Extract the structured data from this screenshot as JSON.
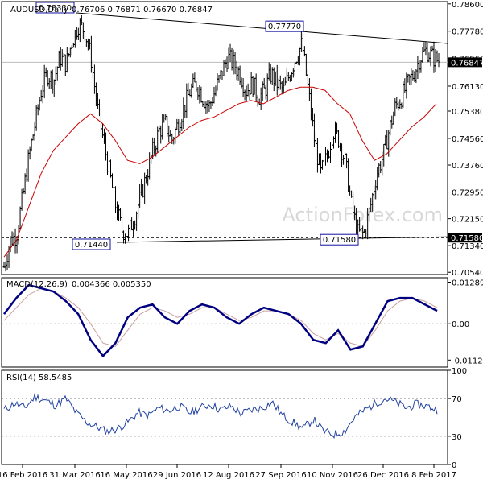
{
  "header": {
    "symbol": "AUDUSD,Daily",
    "ohlc": "0.76706 0.76871 0.76670 0.76847"
  },
  "watermark": "ActionForex.com",
  "colors": {
    "ohlc": "#000000",
    "ema": "#cc0000",
    "macd": "#000080",
    "signal": "#c8a0a0",
    "rsi": "#2040a0",
    "trendline": "#000000",
    "current_price_tag": "#000000"
  },
  "chart_data": [
    {
      "type": "ohlc",
      "title": "AUDUSD,Daily",
      "y_ticks": [
        "0.78600",
        "0.77780",
        "0.76960",
        "0.76130",
        "0.75380",
        "0.74560",
        "0.73760",
        "0.72950",
        "0.72150",
        "0.71340",
        "0.70540"
      ],
      "ylim": [
        0.70473,
        0.78668
      ],
      "x_ticks": [
        "16 Feb 2016",
        "31 Mar 2016",
        "16 May 2016",
        "29 Jun 2016",
        "12 Aug 2016",
        "27 Sep 2016",
        "10 Nov 2016",
        "26 Dec 2016",
        "8 Feb 2017"
      ],
      "annotations": [
        {
          "label": "0.78330",
          "x": "31 Mar 2016",
          "y": 0.7833
        },
        {
          "label": "0.71440",
          "x": "16 May 2016",
          "y": 0.7144
        },
        {
          "label": "0.77770",
          "x": "27 Sep 2016",
          "y": 0.7777
        },
        {
          "label": "0.71580",
          "x": "26 Dec 2016",
          "y": 0.7158
        }
      ],
      "price_tags": [
        {
          "label": "0.76847",
          "y": 0.76847
        },
        {
          "label": "0.71580",
          "y": 0.7158
        }
      ],
      "close_path": [
        0.707,
        0.715,
        0.7165,
        0.728,
        0.74,
        0.75,
        0.76,
        0.765,
        0.763,
        0.77,
        0.768,
        0.775,
        0.78,
        0.778,
        0.77,
        0.755,
        0.745,
        0.735,
        0.725,
        0.718,
        0.717,
        0.722,
        0.728,
        0.735,
        0.742,
        0.748,
        0.75,
        0.745,
        0.75,
        0.755,
        0.76,
        0.762,
        0.758,
        0.755,
        0.76,
        0.765,
        0.77,
        0.768,
        0.765,
        0.76,
        0.762,
        0.758,
        0.76,
        0.765,
        0.762,
        0.76,
        0.765,
        0.77,
        0.774,
        0.76,
        0.745,
        0.735,
        0.74,
        0.748,
        0.745,
        0.738,
        0.725,
        0.717,
        0.717,
        0.725,
        0.735,
        0.74,
        0.748,
        0.755,
        0.758,
        0.762,
        0.765,
        0.77,
        0.772,
        0.77,
        0.769
      ],
      "ema_path": [
        0.71,
        0.715,
        0.725,
        0.735,
        0.742,
        0.746,
        0.75,
        0.753,
        0.75,
        0.745,
        0.739,
        0.738,
        0.74,
        0.743,
        0.746,
        0.749,
        0.751,
        0.752,
        0.754,
        0.756,
        0.757,
        0.756,
        0.758,
        0.76,
        0.761,
        0.761,
        0.76,
        0.756,
        0.753,
        0.745,
        0.739,
        0.741,
        0.745,
        0.749,
        0.752,
        0.756
      ]
    },
    {
      "type": "line",
      "title": "MACD(12,26,9)",
      "values_text": "0.004366 0.005350",
      "y_ticks": [
        "0.012894",
        "0.00",
        "-0.011253"
      ],
      "ylim": [
        -0.01342,
        0.014267
      ],
      "series": [
        {
          "name": "macd",
          "values": [
            0.003,
            0.008,
            0.012,
            0.011,
            0.01,
            0.007,
            0.003,
            -0.005,
            -0.01,
            -0.006,
            0.002,
            0.005,
            0.006,
            0.002,
            0.0,
            0.004,
            0.006,
            0.005,
            0.002,
            0.0,
            0.003,
            0.005,
            0.004,
            0.003,
            0.0,
            -0.005,
            -0.006,
            -0.002,
            -0.008,
            -0.007,
            0.0,
            0.007,
            0.008,
            0.008,
            0.006,
            0.004
          ]
        },
        {
          "name": "signal",
          "values": [
            0.001,
            0.005,
            0.009,
            0.011,
            0.01,
            0.008,
            0.005,
            0.0,
            -0.006,
            -0.007,
            -0.002,
            0.003,
            0.005,
            0.004,
            0.002,
            0.003,
            0.005,
            0.005,
            0.003,
            0.001,
            0.002,
            0.004,
            0.004,
            0.003,
            0.001,
            -0.003,
            -0.005,
            -0.003,
            -0.006,
            -0.007,
            -0.002,
            0.004,
            0.007,
            0.008,
            0.007,
            0.005
          ]
        }
      ]
    },
    {
      "type": "line",
      "title": "RSI(14)",
      "values_text": "58.5485",
      "y_ticks": [
        "100",
        "70",
        "30",
        "0"
      ],
      "ylim": [
        0,
        100
      ],
      "series": [
        {
          "name": "rsi",
          "values": [
            58,
            65,
            60,
            72,
            68,
            63,
            70,
            55,
            45,
            40,
            35,
            38,
            45,
            55,
            52,
            60,
            57,
            62,
            55,
            60,
            64,
            58,
            62,
            54,
            58,
            60,
            66,
            52,
            45,
            38,
            48,
            35,
            32,
            35,
            50,
            58,
            65,
            70,
            66,
            60,
            64,
            62,
            58
          ]
        }
      ]
    }
  ]
}
